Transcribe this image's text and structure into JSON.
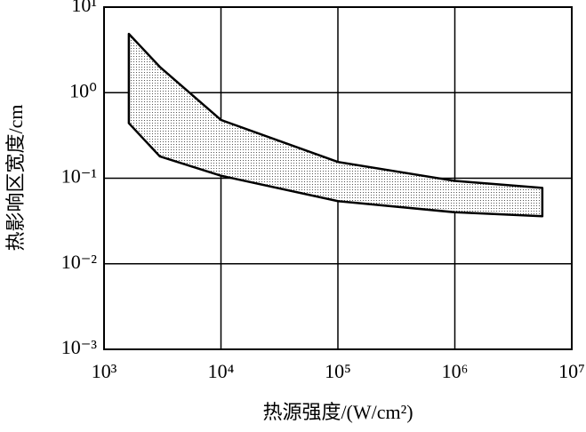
{
  "chart_data": {
    "type": "band",
    "x_label": "热源强度/(W/cm²)",
    "y_label": "热影响区宽度/cm",
    "x": [
      1630,
      3000,
      10000,
      100000,
      1000000,
      5600000
    ],
    "upper": [
      4.87,
      2.0,
      0.48,
      0.155,
      0.093,
      0.077
    ],
    "lower": [
      0.44,
      0.18,
      0.107,
      0.054,
      0.04,
      0.036
    ],
    "color": "#000000",
    "xlim": [
      1000,
      10000000
    ],
    "ylim": [
      0.001,
      10
    ],
    "xticks": [
      {
        "value": 1000,
        "label": "10³"
      },
      {
        "value": 10000,
        "label": "10⁴"
      },
      {
        "value": 100000,
        "label": "10⁵"
      },
      {
        "value": 1000000,
        "label": "10⁶"
      },
      {
        "value": 10000000,
        "label": "10⁷"
      }
    ],
    "yticks": [
      {
        "value": 0.001,
        "label": "10⁻³"
      },
      {
        "value": 0.01,
        "label": "10⁻²"
      },
      {
        "value": 0.1,
        "label": "10⁻¹"
      },
      {
        "value": 1,
        "label": "10⁰"
      },
      {
        "value": 10,
        "label": "10¹"
      }
    ],
    "log_x": true,
    "log_y": true,
    "grid": true
  }
}
